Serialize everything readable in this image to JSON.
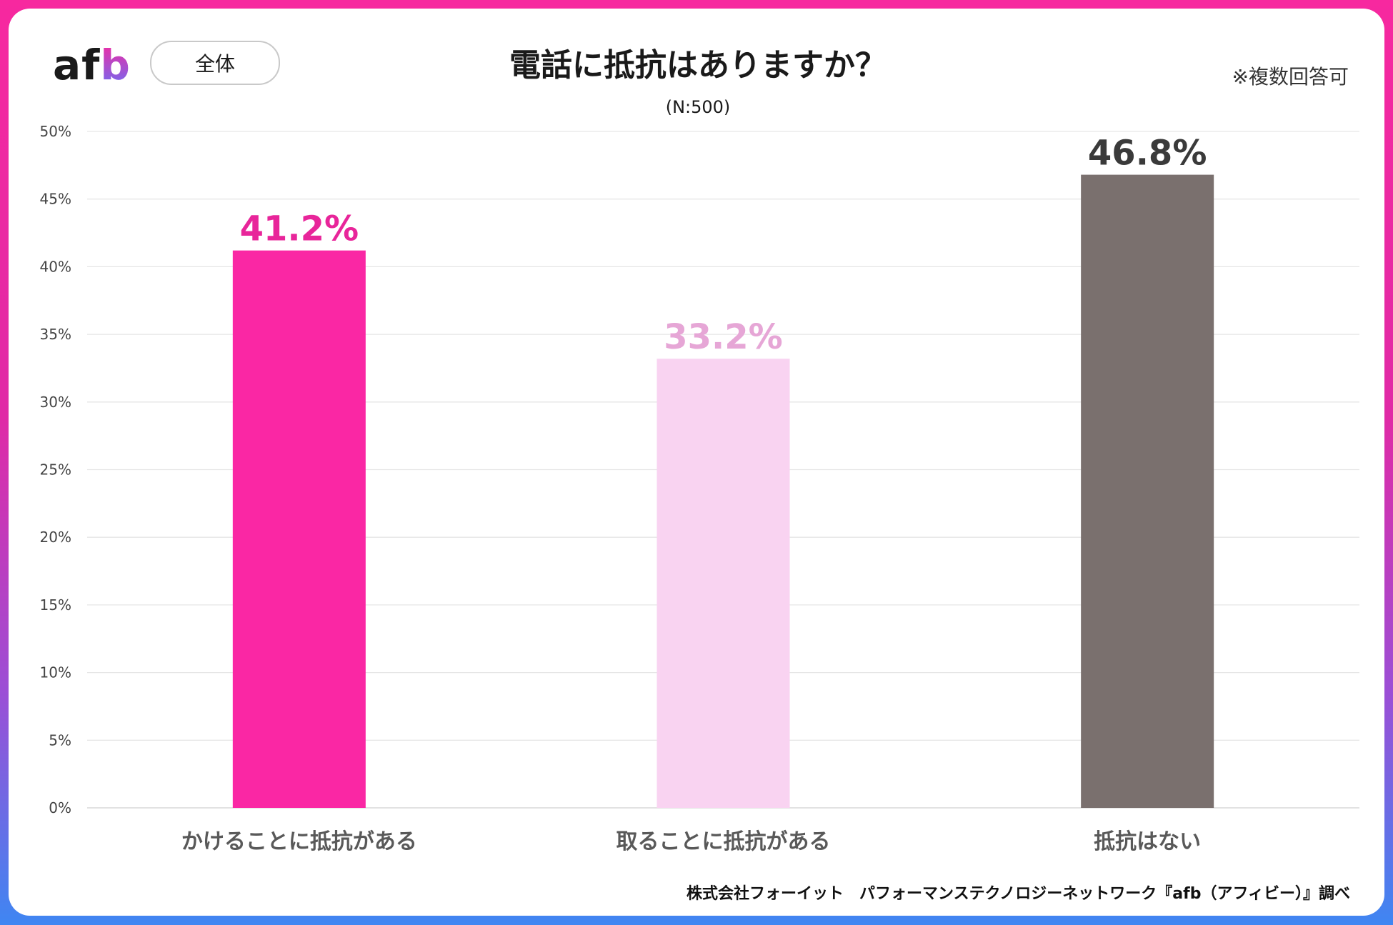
{
  "logo": {
    "text_af": "af",
    "text_b": "b"
  },
  "segment_label": "全体",
  "note": "※複数回答可",
  "footer": "株式会社フォーイット　パフォーマンステクノロジーネットワーク『afb（アフィビー）』調べ",
  "chart_data": {
    "type": "bar",
    "title": "電話に抵抗はありますか？",
    "subtitle": "(N:500)",
    "categories": [
      "かけることに抵抗がある",
      "取ることに抵抗がある",
      "抵抗はない"
    ],
    "values": [
      41.2,
      33.2,
      46.8
    ],
    "value_labels": [
      "41.2%",
      "33.2%",
      "46.8%"
    ],
    "bar_colors": [
      "#fa27a4",
      "#f9d3f1",
      "#7a706e"
    ],
    "label_colors": [
      "#e8259a",
      "#e6a6d6",
      "#3a3a3a"
    ],
    "ylim": [
      0,
      50
    ],
    "y_ticks": [
      0,
      5,
      10,
      15,
      20,
      25,
      30,
      35,
      40,
      45,
      50
    ],
    "y_tick_labels": [
      "0%",
      "5%",
      "10%",
      "15%",
      "20%",
      "25%",
      "30%",
      "35%",
      "40%",
      "45%",
      "50%"
    ],
    "grid": true,
    "xlabel": "",
    "ylabel": ""
  }
}
